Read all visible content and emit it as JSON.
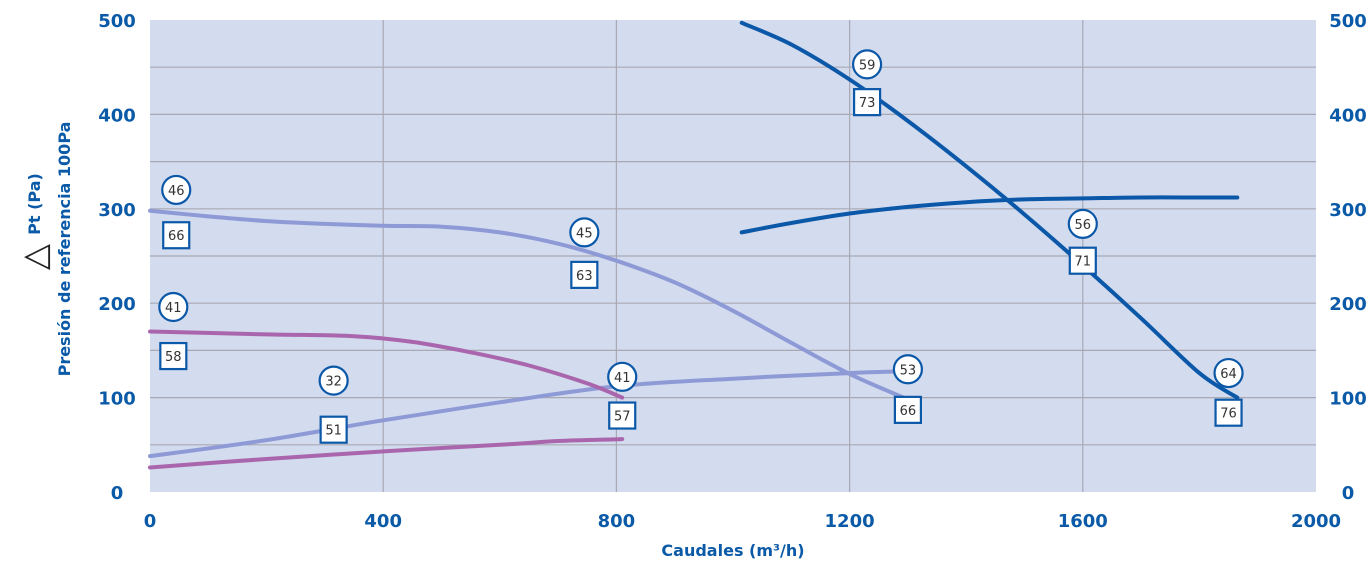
{
  "chart_data": {
    "type": "line",
    "xlabel": "Caudales (m³/h)",
    "ylabel_symbol": "△",
    "ylabel_unit": "Pt (Pa)",
    "ylabel_ref": "Presión de referencia 100Pa",
    "xlim": [
      0,
      2000
    ],
    "ylim": [
      0,
      500
    ],
    "x_ticks": [
      "0",
      "400",
      "800",
      "1200",
      "1600",
      "2000"
    ],
    "x_tick_values": [
      0,
      400,
      800,
      1200,
      1600,
      2000
    ],
    "y_ticks": [
      "0",
      "100",
      "200",
      "300",
      "400",
      "500"
    ],
    "y_tick_values": [
      0,
      100,
      200,
      300,
      400,
      500
    ],
    "y_ticks_right": true,
    "grid": true,
    "colors": {
      "plot_bg": "#d3dbef",
      "grid": "#a9a9b3",
      "axis_text": "#0b5aa8",
      "dark_blue": "#0b58a8",
      "light_blue": "#8e9ad6",
      "purple": "#a966ad"
    },
    "series": [
      {
        "color": "#8e9ad6",
        "x": [
          0,
          100,
          200,
          300,
          400,
          500,
          600,
          700,
          800,
          900,
          1000,
          1100,
          1200,
          1300
        ],
        "y": [
          298,
          292,
          287,
          284,
          282,
          281,
          275,
          263,
          245,
          222,
          192,
          158,
          125,
          98
        ]
      },
      {
        "color": "#8e9ad6",
        "x": [
          0,
          200,
          400,
          600,
          800,
          1000,
          1200,
          1300
        ],
        "y": [
          38,
          55,
          76,
          95,
          112,
          120,
          126,
          128
        ]
      },
      {
        "color": "#a966ad",
        "x": [
          0,
          200,
          350,
          450,
          550,
          650,
          750,
          810
        ],
        "y": [
          170,
          167,
          165,
          159,
          148,
          134,
          115,
          100
        ]
      },
      {
        "color": "#a966ad",
        "x": [
          0,
          200,
          400,
          600,
          700,
          810
        ],
        "y": [
          26,
          35,
          43,
          50,
          54,
          56
        ]
      },
      {
        "color": "#0b58a8",
        "x": [
          1015,
          1100,
          1200,
          1300,
          1400,
          1500,
          1600,
          1700,
          1800,
          1865
        ],
        "y": [
          497,
          474,
          437,
          393,
          345,
          294,
          240,
          184,
          126,
          100
        ]
      },
      {
        "color": "#0b58a8",
        "x": [
          1015,
          1100,
          1200,
          1300,
          1400,
          1500,
          1600,
          1700,
          1800,
          1865
        ],
        "y": [
          275,
          285,
          295,
          302,
          307,
          310,
          311,
          312,
          312,
          312
        ]
      }
    ],
    "annotations": [
      {
        "shape": "circle",
        "text": "46",
        "x": 45,
        "y": 320
      },
      {
        "shape": "square",
        "text": "66",
        "x": 45,
        "y": 272
      },
      {
        "shape": "circle",
        "text": "45",
        "x": 745,
        "y": 275
      },
      {
        "shape": "square",
        "text": "63",
        "x": 745,
        "y": 230
      },
      {
        "shape": "circle",
        "text": "41",
        "x": 40,
        "y": 196
      },
      {
        "shape": "square",
        "text": "58",
        "x": 40,
        "y": 144
      },
      {
        "shape": "circle",
        "text": "32",
        "x": 315,
        "y": 118
      },
      {
        "shape": "square",
        "text": "51",
        "x": 315,
        "y": 66
      },
      {
        "shape": "circle",
        "text": "41",
        "x": 810,
        "y": 122
      },
      {
        "shape": "square",
        "text": "57",
        "x": 810,
        "y": 81
      },
      {
        "shape": "circle",
        "text": "53",
        "x": 1300,
        "y": 130
      },
      {
        "shape": "square",
        "text": "66",
        "x": 1300,
        "y": 87
      },
      {
        "shape": "circle",
        "text": "59",
        "x": 1230,
        "y": 453
      },
      {
        "shape": "square",
        "text": "73",
        "x": 1230,
        "y": 413
      },
      {
        "shape": "circle",
        "text": "56",
        "x": 1600,
        "y": 284
      },
      {
        "shape": "square",
        "text": "71",
        "x": 1600,
        "y": 245
      },
      {
        "shape": "circle",
        "text": "64",
        "x": 1850,
        "y": 126
      },
      {
        "shape": "square",
        "text": "76",
        "x": 1850,
        "y": 84
      }
    ]
  }
}
